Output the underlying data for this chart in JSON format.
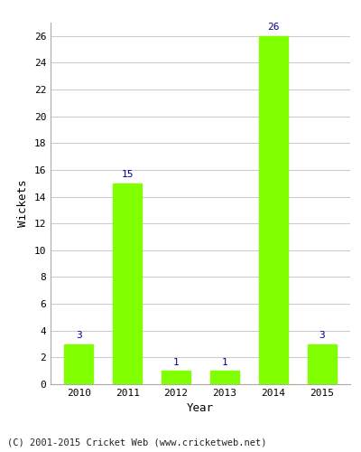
{
  "categories": [
    "2010",
    "2011",
    "2012",
    "2013",
    "2014",
    "2015"
  ],
  "values": [
    3,
    15,
    1,
    1,
    26,
    3
  ],
  "bar_color": "#7fff00",
  "bar_edge_color": "#7fff00",
  "xlabel": "Year",
  "ylabel": "Wickets",
  "ylim": [
    0,
    27
  ],
  "yticks": [
    0,
    2,
    4,
    6,
    8,
    10,
    12,
    14,
    16,
    18,
    20,
    22,
    24,
    26
  ],
  "label_color": "#00008b",
  "label_fontsize": 8,
  "axis_label_fontsize": 9,
  "tick_fontsize": 8,
  "grid_color": "#cccccc",
  "background_color": "#ffffff",
  "footer_text": "(C) 2001-2015 Cricket Web (www.cricketweb.net)",
  "footer_fontsize": 7.5
}
